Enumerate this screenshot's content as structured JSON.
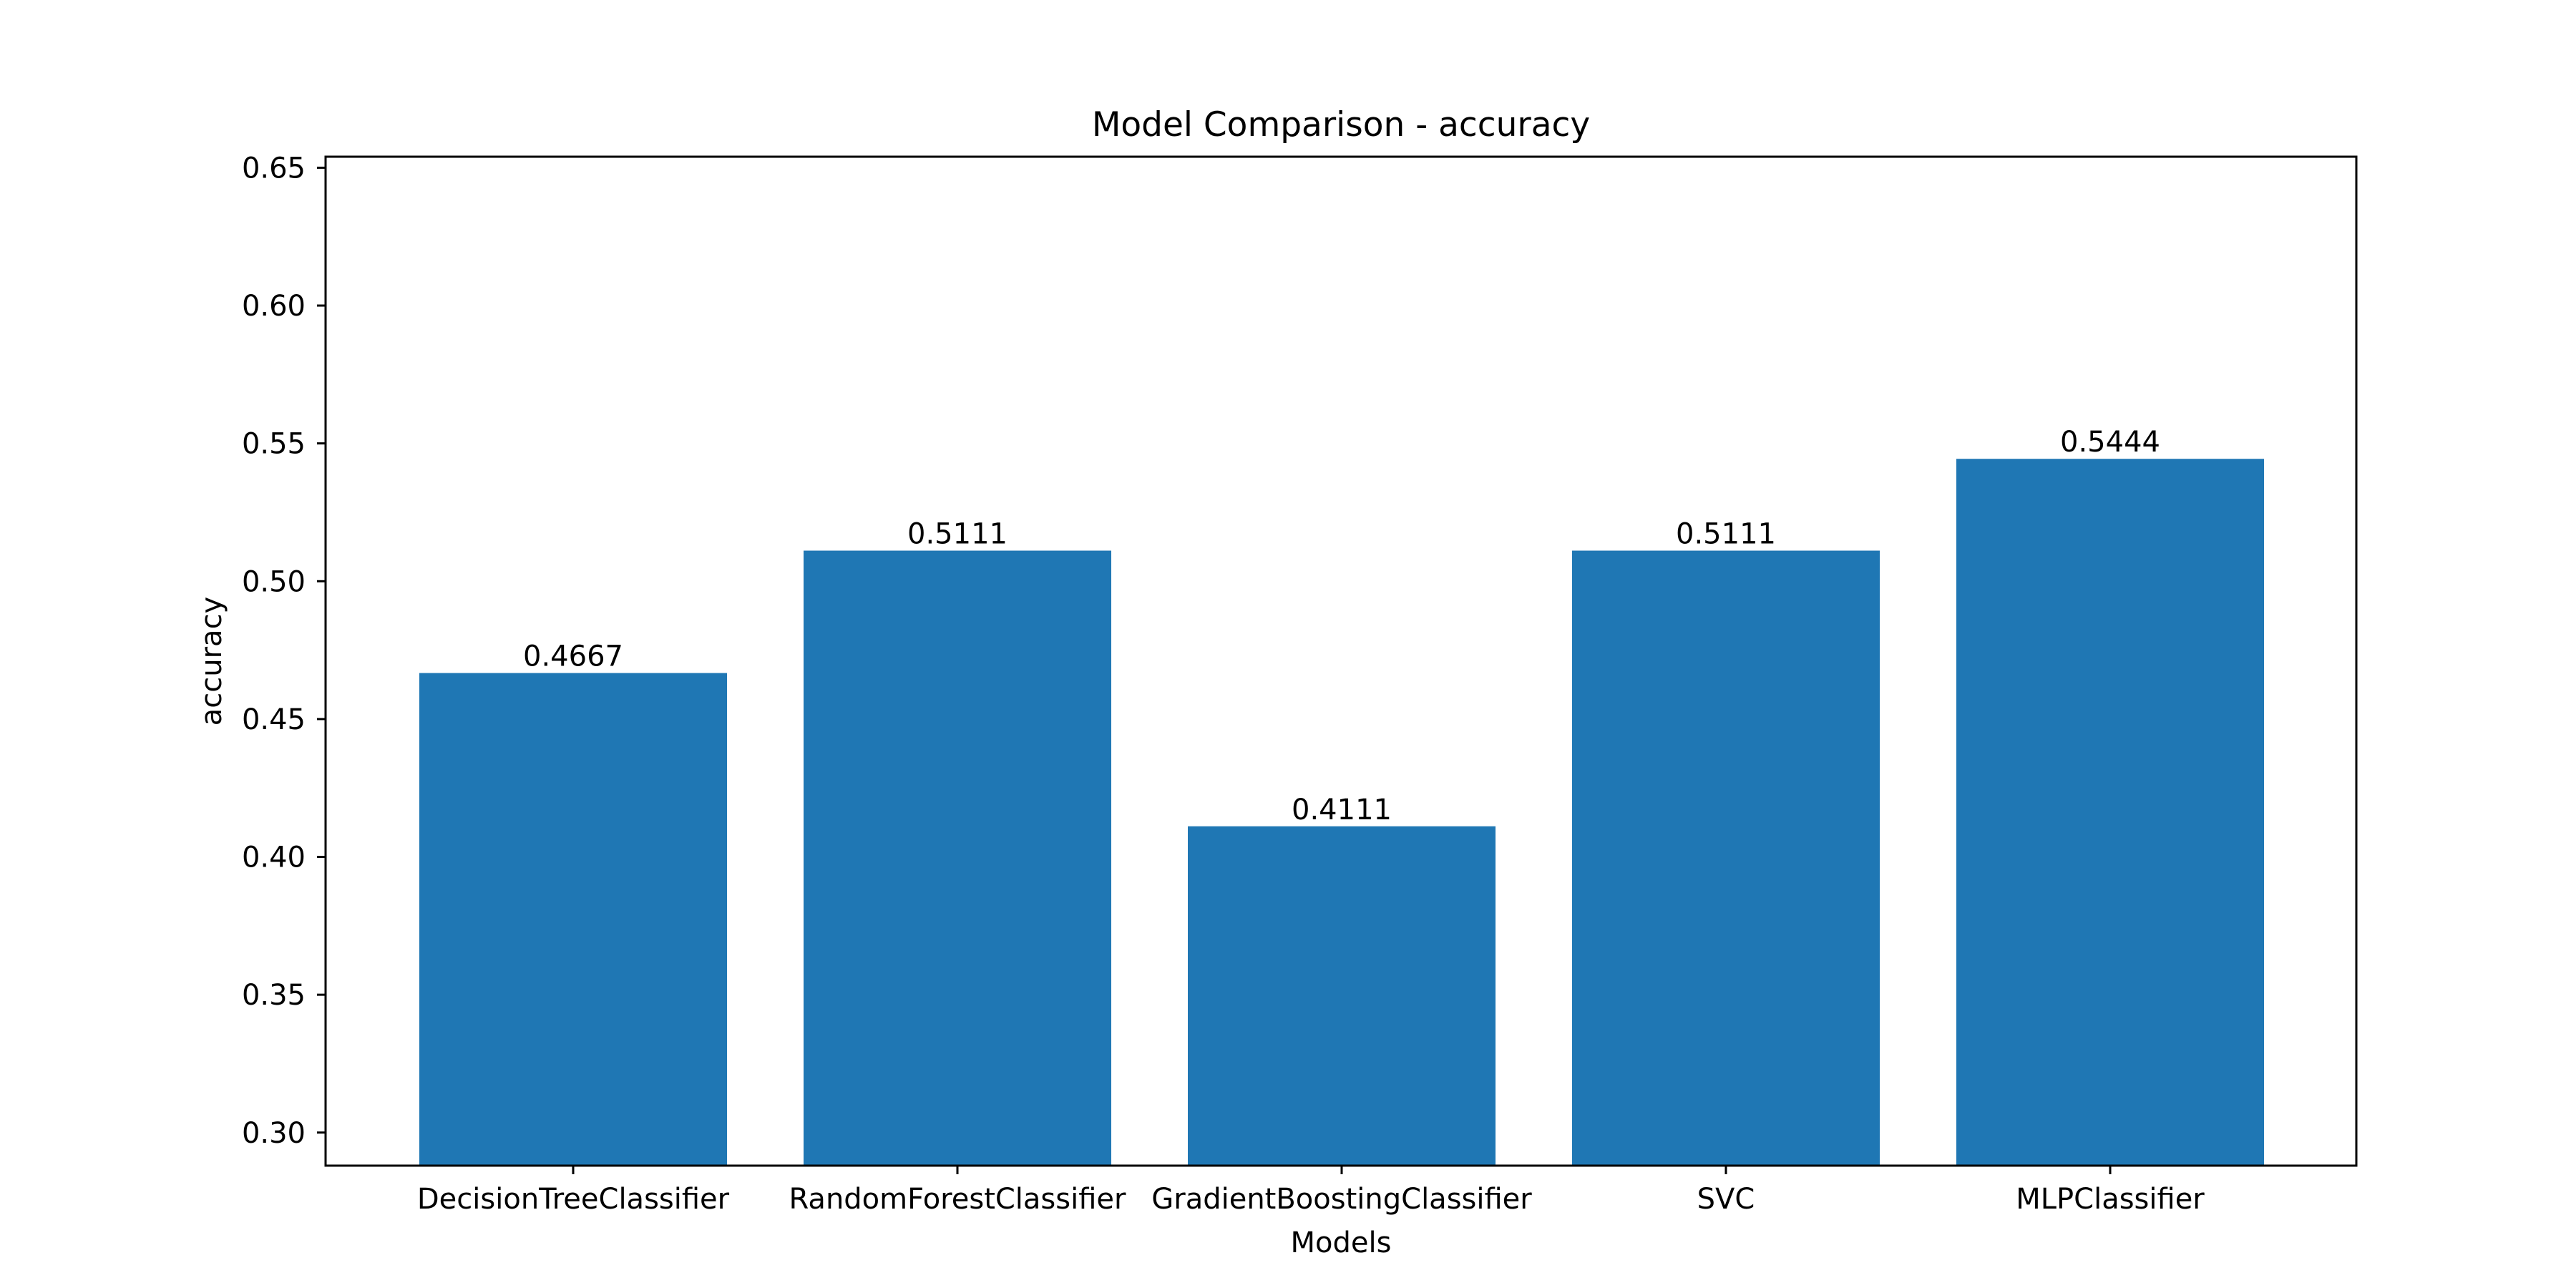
{
  "chart_data": {
    "type": "bar",
    "title": "Model Comparison - accuracy",
    "xlabel": "Models",
    "ylabel": "accuracy",
    "categories": [
      "DecisionTreeClassifier",
      "RandomForestClassifier",
      "GradientBoostingClassifier",
      "SVC",
      "MLPClassifier"
    ],
    "values": [
      0.4667,
      0.5111,
      0.4111,
      0.5111,
      0.5444
    ],
    "data_labels": [
      "0.4667",
      "0.5111",
      "0.4111",
      "0.5111",
      "0.5444"
    ],
    "ylim": [
      0.288,
      0.654
    ],
    "yticks": [
      0.3,
      0.35,
      0.4,
      0.45,
      0.5,
      0.55,
      0.6,
      0.65
    ],
    "ytick_labels": [
      "0.30",
      "0.35",
      "0.40",
      "0.45",
      "0.50",
      "0.55",
      "0.60",
      "0.65"
    ],
    "grid": false,
    "legend": "none",
    "colors": {
      "bar": "#1f77b4",
      "axes": "#000000",
      "text": "#000000",
      "background": "#ffffff"
    }
  }
}
